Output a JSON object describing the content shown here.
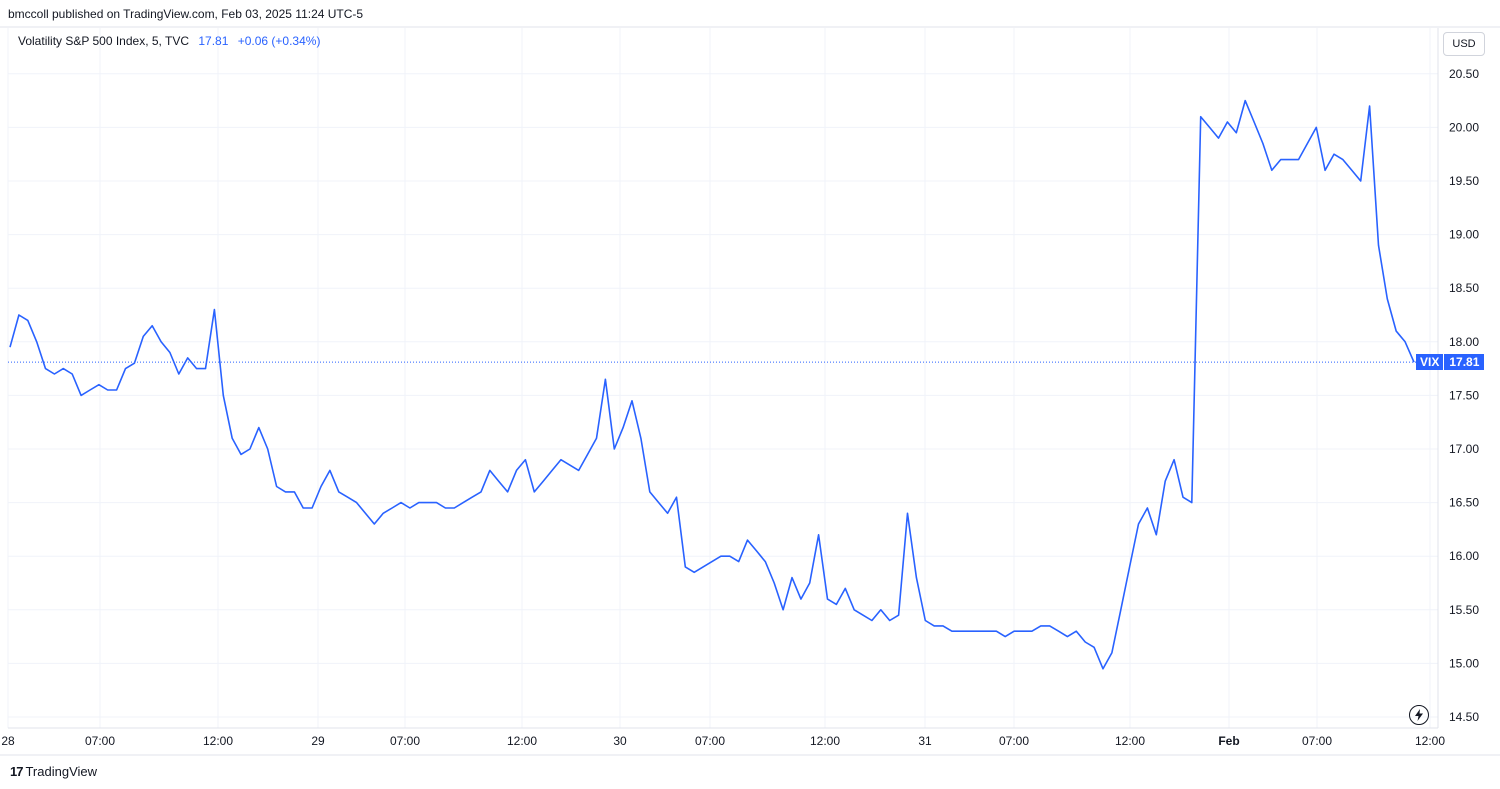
{
  "header": {
    "published_line": "bmccoll published on TradingView.com, Feb 03, 2025 11:24 UTC-5"
  },
  "legend": {
    "symbol_line": "Volatility S&P 500 Index, 5, TVC",
    "last": "17.81",
    "change": "+0.06 (+0.34%)"
  },
  "currency": "USD",
  "last_price_tag": {
    "symbol": "VIX",
    "price": "17.81"
  },
  "footer": {
    "brand": "TradingView",
    "logo_glyph": "17"
  },
  "colors": {
    "line": "#2962ff",
    "grid": "#f0f3fa",
    "axis_text": "#131722",
    "border": "#e0e3eb"
  },
  "chart_data": {
    "type": "line",
    "ylim": [
      14.4,
      20.9
    ],
    "y_ticks": [
      "14.50",
      "15.00",
      "15.50",
      "16.00",
      "16.50",
      "17.00",
      "17.50",
      "18.00",
      "18.50",
      "19.00",
      "19.50",
      "20.00",
      "20.50"
    ],
    "x_ticks": [
      "28",
      "07:00",
      "12:00",
      "29",
      "07:00",
      "12:00",
      "30",
      "07:00",
      "12:00",
      "31",
      "07:00",
      "12:00",
      "Feb",
      "07:00",
      "12:00"
    ],
    "last_value": 17.81,
    "grid": true,
    "series": [
      {
        "values": [
          17.95,
          18.25,
          18.2,
          18.0,
          17.75,
          17.7,
          17.75,
          17.7,
          17.5,
          17.55,
          17.6,
          17.55,
          17.55,
          17.75,
          17.8,
          18.05,
          18.15,
          18.0,
          17.9,
          17.7,
          17.85,
          17.75,
          17.75,
          18.3,
          17.5,
          17.1,
          16.95,
          17.0,
          17.2,
          17.0,
          16.65,
          16.6,
          16.6,
          16.45,
          16.45,
          16.65,
          16.8,
          16.6,
          16.55,
          16.5,
          16.4,
          16.3,
          16.4,
          16.45,
          16.5,
          16.45,
          16.5,
          16.5,
          16.5,
          16.45,
          16.45,
          16.5,
          16.55,
          16.6,
          16.8,
          16.7,
          16.6,
          16.8,
          16.9,
          16.6,
          16.7,
          16.8,
          16.9,
          16.85,
          16.8,
          16.95,
          17.1,
          17.65,
          17.0,
          17.2,
          17.45,
          17.1,
          16.6,
          16.5,
          16.4,
          16.55,
          15.9,
          15.85,
          15.9,
          15.95,
          16.0,
          16.0,
          15.95,
          16.15,
          16.05,
          15.95,
          15.75,
          15.5,
          15.8,
          15.6,
          15.75,
          16.2,
          15.6,
          15.55,
          15.7,
          15.5,
          15.45,
          15.4,
          15.5,
          15.4,
          15.45,
          16.4,
          15.8,
          15.4,
          15.35,
          15.35,
          15.3,
          15.3,
          15.3,
          15.3,
          15.3,
          15.3,
          15.25,
          15.3,
          15.3,
          15.3,
          15.35,
          15.35,
          15.3,
          15.25,
          15.3,
          15.2,
          15.15,
          14.95,
          15.1,
          15.5,
          15.9,
          16.3,
          16.45,
          16.2,
          16.7,
          16.9,
          16.55,
          16.5,
          20.1,
          20.0,
          19.9,
          20.05,
          19.95,
          20.25,
          20.05,
          19.85,
          19.6,
          19.7,
          19.7,
          19.7,
          19.85,
          20.0,
          19.6,
          19.75,
          19.7,
          19.6,
          19.5,
          20.2,
          18.9,
          18.4,
          18.1,
          18.0,
          17.81
        ]
      }
    ]
  }
}
